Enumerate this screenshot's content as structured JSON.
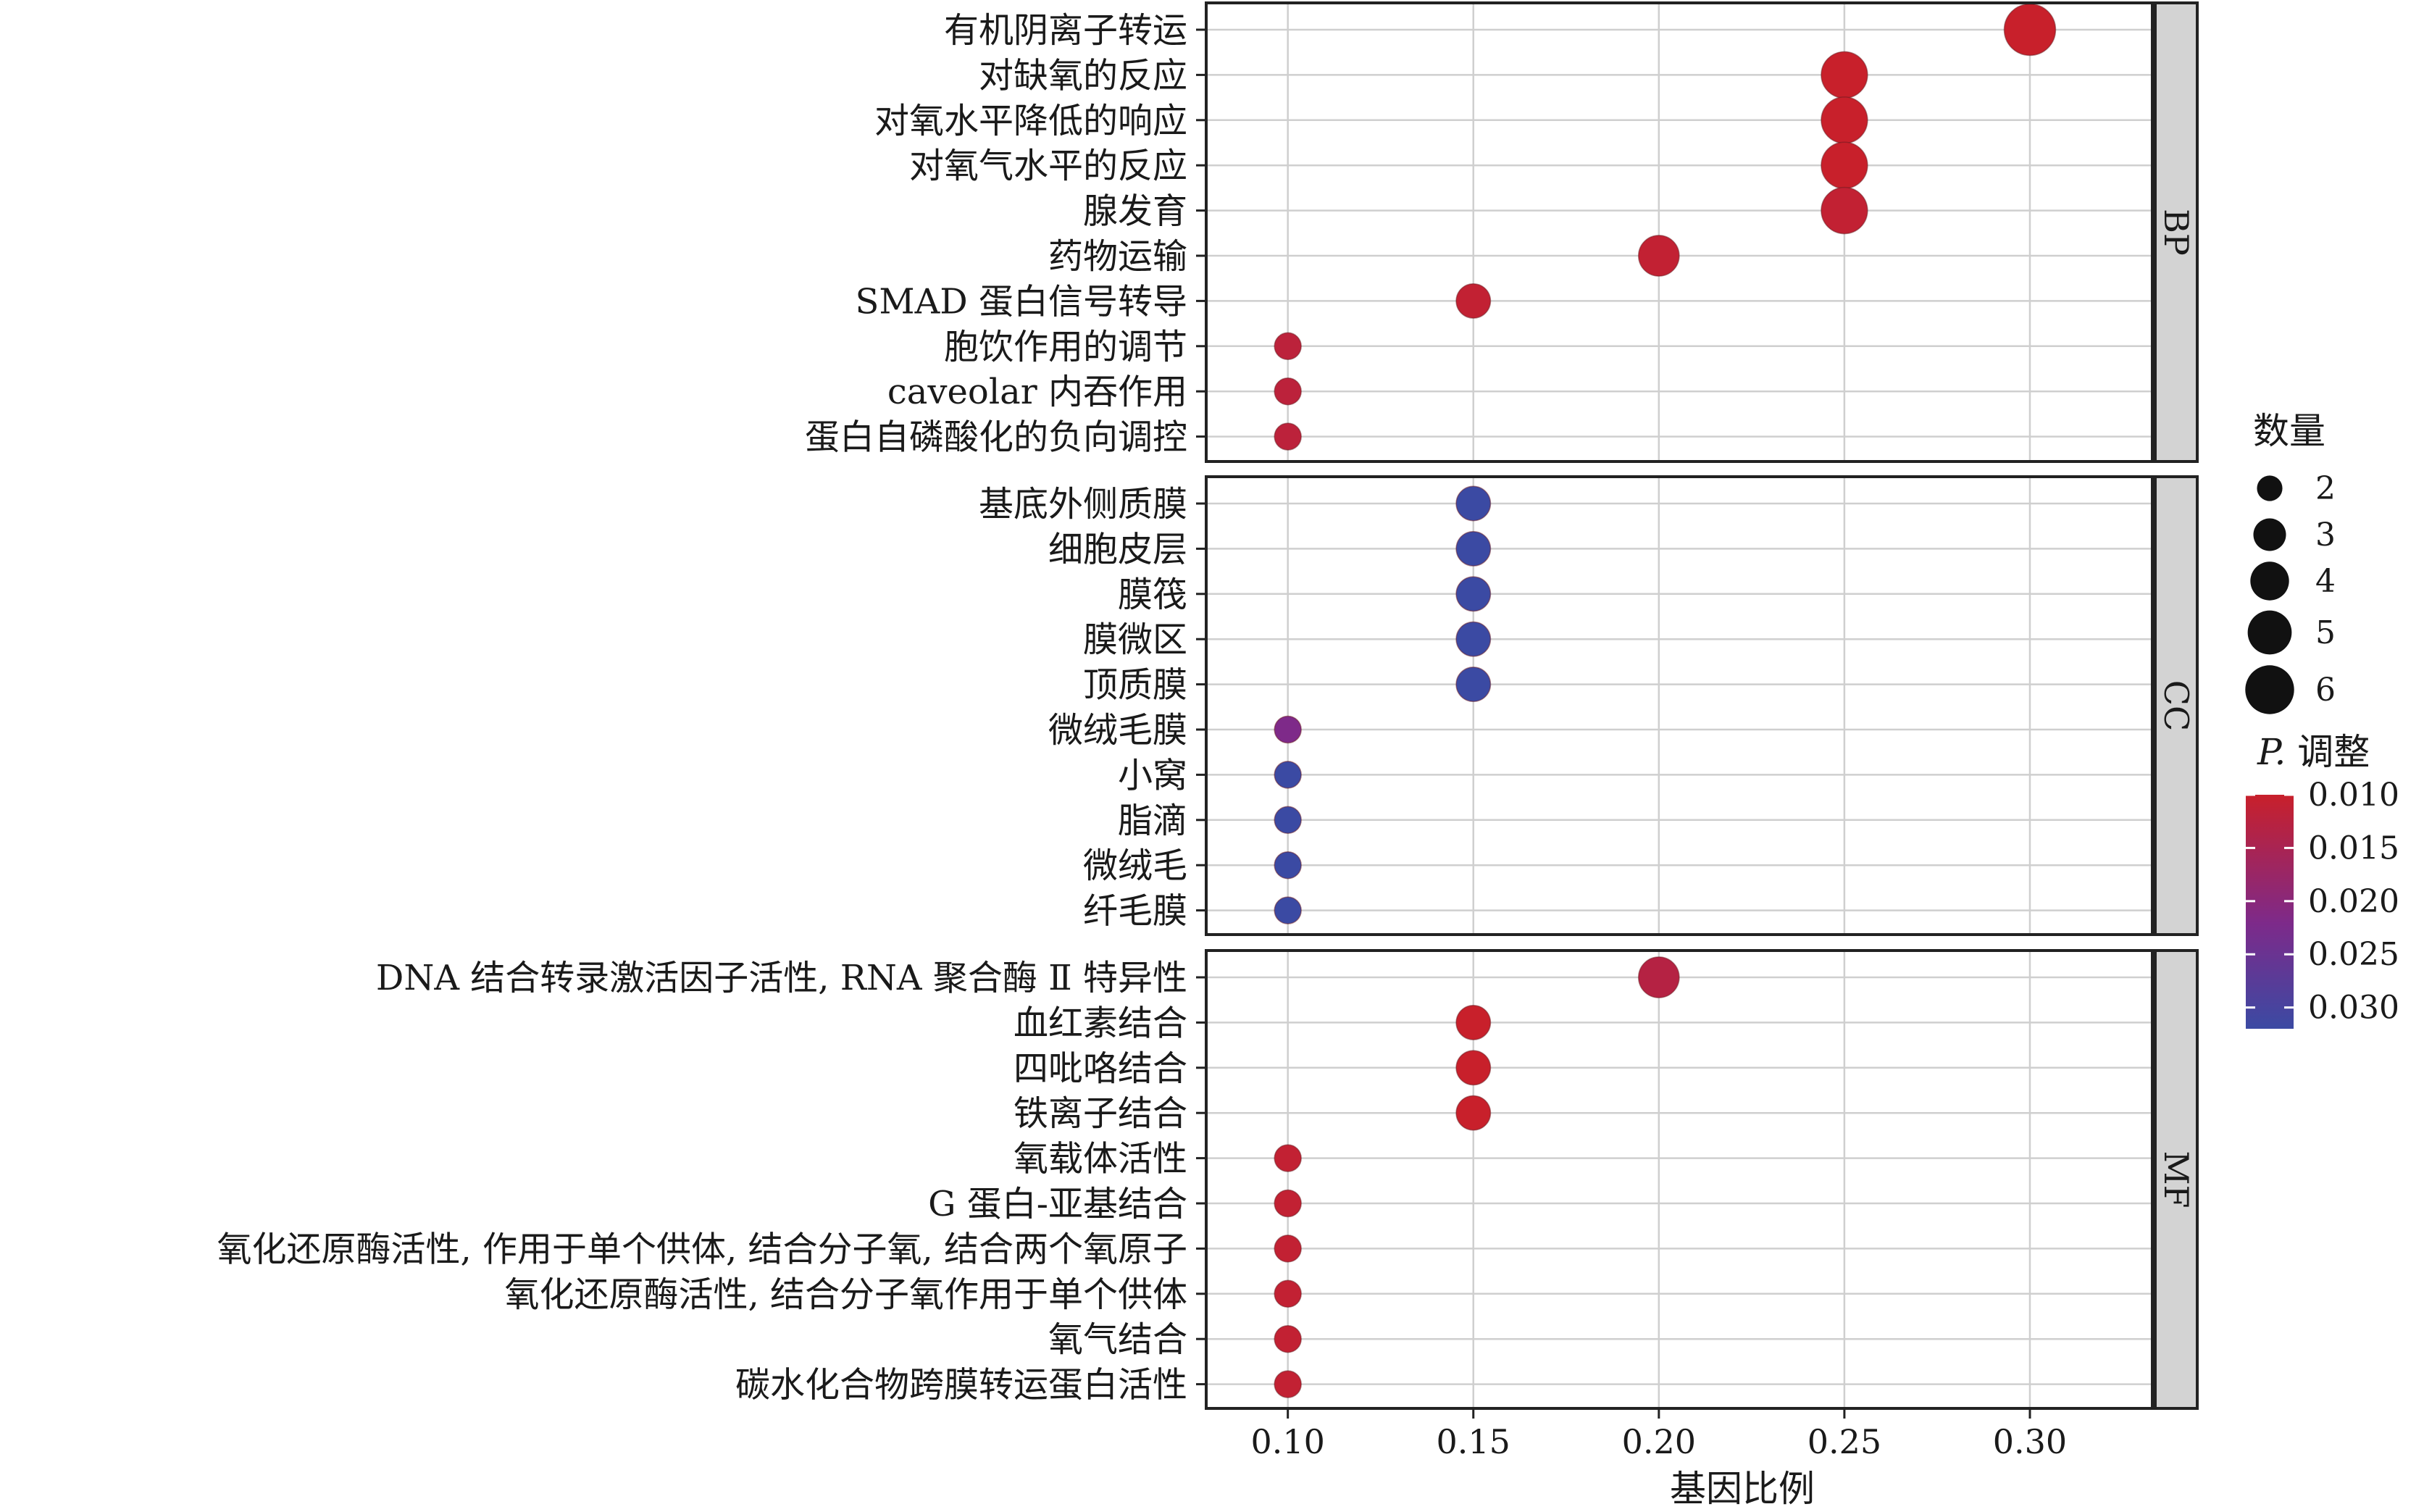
{
  "colors": {
    "panel_border": "#222222",
    "grid": "#cfcfcf",
    "strip_fill": "#d3d3d3",
    "gradient_low_p": "#c8202b",
    "gradient_mid_p": "#7d2a8a",
    "gradient_high_p": "#3b4aa3"
  },
  "chart_data": {
    "type": "scatter",
    "title": "",
    "xlabel": "基因比例",
    "ylabel": "",
    "xlim": [
      0.078,
      0.333
    ],
    "x_ticks": [
      0.1,
      0.15,
      0.2,
      0.25,
      0.3
    ],
    "x_tick_labels": [
      "0.10",
      "0.15",
      "0.20",
      "0.25",
      "0.30"
    ],
    "grid": true,
    "legend_position": "right",
    "size_legend": {
      "title": "数量",
      "values": [
        2,
        3,
        4,
        5,
        6
      ],
      "labels": [
        "2",
        "3",
        "4",
        "5",
        "6"
      ]
    },
    "color_legend": {
      "title_italic": "P.",
      "title_rest": " 调整",
      "min": 0.01,
      "max": 0.032,
      "ticks": [
        0.01,
        0.015,
        0.02,
        0.025,
        0.03
      ],
      "tick_labels": [
        "0.010",
        "0.015",
        "0.020",
        "0.025",
        "0.030"
      ]
    },
    "facets": [
      {
        "name": "BP",
        "points": [
          {
            "term": "有机阴离子转运",
            "gene_ratio": 0.3,
            "count": 6,
            "p_adjust": 0.01
          },
          {
            "term": "对缺氧的反应",
            "gene_ratio": 0.25,
            "count": 5,
            "p_adjust": 0.01
          },
          {
            "term": "对氧水平降低的响应",
            "gene_ratio": 0.25,
            "count": 5,
            "p_adjust": 0.01
          },
          {
            "term": "对氧气水平的反应",
            "gene_ratio": 0.25,
            "count": 5,
            "p_adjust": 0.01
          },
          {
            "term": "腺发育",
            "gene_ratio": 0.25,
            "count": 5,
            "p_adjust": 0.011
          },
          {
            "term": "药物运输",
            "gene_ratio": 0.2,
            "count": 4,
            "p_adjust": 0.011
          },
          {
            "term": "SMAD 蛋白信号转导",
            "gene_ratio": 0.15,
            "count": 3,
            "p_adjust": 0.011
          },
          {
            "term": "胞饮作用的调节",
            "gene_ratio": 0.1,
            "count": 2,
            "p_adjust": 0.012
          },
          {
            "term": "caveolar 内吞作用",
            "gene_ratio": 0.1,
            "count": 2,
            "p_adjust": 0.012
          },
          {
            "term": "蛋白自磷酸化的负向调控",
            "gene_ratio": 0.1,
            "count": 2,
            "p_adjust": 0.012
          }
        ]
      },
      {
        "name": "CC",
        "points": [
          {
            "term": "基底外侧质膜",
            "gene_ratio": 0.15,
            "count": 3,
            "p_adjust": 0.032
          },
          {
            "term": "细胞皮层",
            "gene_ratio": 0.15,
            "count": 3,
            "p_adjust": 0.032
          },
          {
            "term": "膜筏",
            "gene_ratio": 0.15,
            "count": 3,
            "p_adjust": 0.032
          },
          {
            "term": "膜微区",
            "gene_ratio": 0.15,
            "count": 3,
            "p_adjust": 0.032
          },
          {
            "term": "顶质膜",
            "gene_ratio": 0.15,
            "count": 3,
            "p_adjust": 0.032
          },
          {
            "term": "微绒毛膜",
            "gene_ratio": 0.1,
            "count": 2,
            "p_adjust": 0.022
          },
          {
            "term": "小窝",
            "gene_ratio": 0.1,
            "count": 2,
            "p_adjust": 0.032
          },
          {
            "term": "脂滴",
            "gene_ratio": 0.1,
            "count": 2,
            "p_adjust": 0.032
          },
          {
            "term": "微绒毛",
            "gene_ratio": 0.1,
            "count": 2,
            "p_adjust": 0.032
          },
          {
            "term": "纤毛膜",
            "gene_ratio": 0.1,
            "count": 2,
            "p_adjust": 0.032
          }
        ]
      },
      {
        "name": "MF",
        "points": [
          {
            "term": "DNA 结合转录激活因子活性, RNA 聚合酶 Ⅱ 特异性",
            "gene_ratio": 0.2,
            "count": 4,
            "p_adjust": 0.013
          },
          {
            "term": "血红素结合",
            "gene_ratio": 0.15,
            "count": 3,
            "p_adjust": 0.01
          },
          {
            "term": "四吡咯结合",
            "gene_ratio": 0.15,
            "count": 3,
            "p_adjust": 0.01
          },
          {
            "term": "铁离子结合",
            "gene_ratio": 0.15,
            "count": 3,
            "p_adjust": 0.01
          },
          {
            "term": "氧载体活性",
            "gene_ratio": 0.1,
            "count": 2,
            "p_adjust": 0.011
          },
          {
            "term": "G 蛋白-亚基结合",
            "gene_ratio": 0.1,
            "count": 2,
            "p_adjust": 0.011
          },
          {
            "term": "氧化还原酶活性, 作用于单个供体, 结合分子氧, 结合两个氧原子",
            "gene_ratio": 0.1,
            "count": 2,
            "p_adjust": 0.011
          },
          {
            "term": "氧化还原酶活性, 结合分子氧作用于单个供体",
            "gene_ratio": 0.1,
            "count": 2,
            "p_adjust": 0.011
          },
          {
            "term": "氧气结合",
            "gene_ratio": 0.1,
            "count": 2,
            "p_adjust": 0.011
          },
          {
            "term": "碳水化合物跨膜转运蛋白活性",
            "gene_ratio": 0.1,
            "count": 2,
            "p_adjust": 0.011
          }
        ]
      }
    ]
  }
}
